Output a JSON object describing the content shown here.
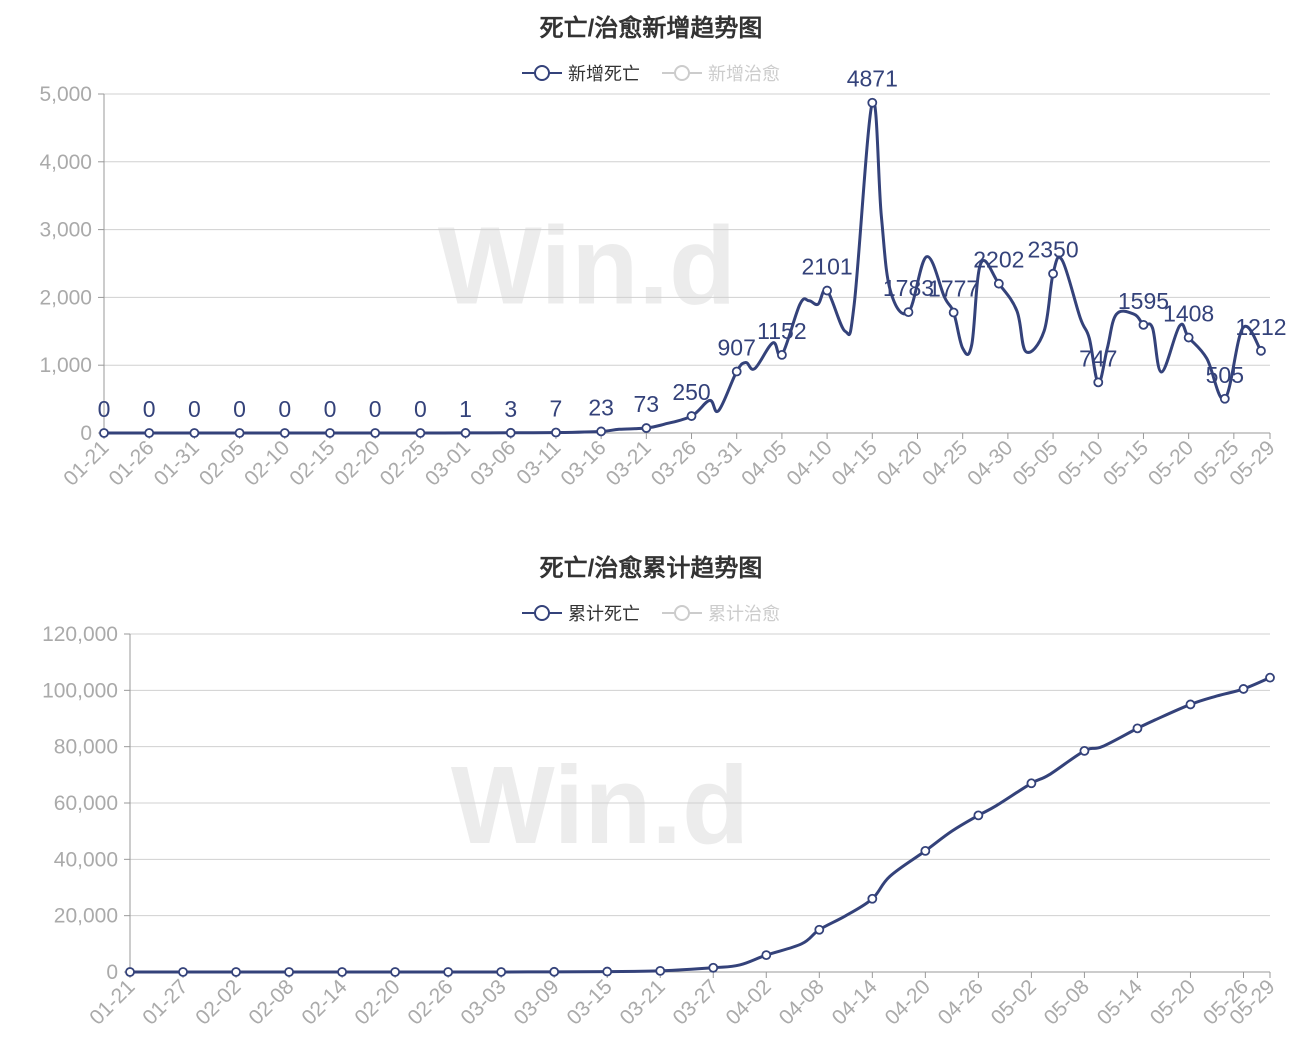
{
  "charts": [
    {
      "title": "死亡/治愈新增趋势图",
      "legend": [
        {
          "label": "新增死亡",
          "active": true
        },
        {
          "label": "新增治愈",
          "active": false
        }
      ],
      "watermark": "Win.d"
    },
    {
      "title": "死亡/治愈累计趋势图",
      "legend": [
        {
          "label": "累计死亡",
          "active": true
        },
        {
          "label": "累计治愈",
          "active": false
        }
      ],
      "watermark": "Win.d"
    }
  ],
  "colors": {
    "series": "#34427a",
    "inactive": "#cccccc",
    "axis_text": "#aaaaaa",
    "grid": "#d0d0d0",
    "watermark": "#ececec"
  },
  "chart_data": [
    {
      "type": "line",
      "title": "死亡/治愈新增趋势图",
      "xlabel": "",
      "ylabel": "",
      "ylim": [
        0,
        5000
      ],
      "yticks": [
        "0",
        "1,000",
        "2,000",
        "3,000",
        "4,000",
        "5,000"
      ],
      "yticks_values": [
        0,
        1000,
        2000,
        3000,
        4000,
        5000
      ],
      "grid": true,
      "legend_position": "top-center",
      "x_tick_labels": [
        "01-21",
        "01-26",
        "01-31",
        "02-05",
        "02-10",
        "02-15",
        "02-20",
        "02-25",
        "03-01",
        "03-06",
        "03-11",
        "03-16",
        "03-21",
        "03-26",
        "03-31",
        "04-05",
        "04-10",
        "04-15",
        "04-20",
        "04-25",
        "04-30",
        "05-05",
        "05-10",
        "05-15",
        "05-20",
        "05-25",
        "05-29"
      ],
      "x_index_range": [
        0,
        129
      ],
      "series": [
        {
          "name": "新增死亡",
          "points": [
            [
              0,
              0
            ],
            [
              5,
              0
            ],
            [
              10,
              0
            ],
            [
              15,
              0
            ],
            [
              20,
              0
            ],
            [
              25,
              0
            ],
            [
              30,
              0
            ],
            [
              35,
              0
            ],
            [
              40,
              1
            ],
            [
              45,
              3
            ],
            [
              50,
              7
            ],
            [
              55,
              23
            ],
            [
              57,
              55
            ],
            [
              60,
              73
            ],
            [
              62,
              130
            ],
            [
              65,
              250
            ],
            [
              67,
              480
            ],
            [
              68,
              330
            ],
            [
              70,
              907
            ],
            [
              71,
              1040
            ],
            [
              72,
              950
            ],
            [
              74,
              1330
            ],
            [
              75,
              1152
            ],
            [
              77,
              1900
            ],
            [
              78,
              1950
            ],
            [
              79,
              1900
            ],
            [
              80,
              2101
            ],
            [
              82,
              1500
            ],
            [
              83,
              1900
            ],
            [
              85,
              4871
            ],
            [
              86,
              3200
            ],
            [
              87,
              2100
            ],
            [
              89,
              1783
            ],
            [
              91,
              2600
            ],
            [
              93,
              2000
            ],
            [
              94,
              1777
            ],
            [
              95,
              1250
            ],
            [
              96,
              1300
            ],
            [
              97,
              2500
            ],
            [
              99,
              2202
            ],
            [
              101,
              1800
            ],
            [
              102,
              1200
            ],
            [
              104,
              1500
            ],
            [
              105,
              2350
            ],
            [
              106,
              2550
            ],
            [
              108,
              1700
            ],
            [
              109,
              1400
            ],
            [
              110,
              747
            ],
            [
              111,
              1250
            ],
            [
              112,
              1750
            ],
            [
              114,
              1750
            ],
            [
              115,
              1595
            ],
            [
              116,
              1550
            ],
            [
              117,
              900
            ],
            [
              119,
              1580
            ],
            [
              120,
              1408
            ],
            [
              122,
              1100
            ],
            [
              124,
              505
            ],
            [
              126,
              1550
            ],
            [
              128,
              1212
            ]
          ],
          "marked": [
            {
              "x": 0,
              "y": 0,
              "label": "0"
            },
            {
              "x": 5,
              "y": 0,
              "label": "0"
            },
            {
              "x": 10,
              "y": 0,
              "label": "0"
            },
            {
              "x": 15,
              "y": 0,
              "label": "0"
            },
            {
              "x": 20,
              "y": 0,
              "label": "0"
            },
            {
              "x": 25,
              "y": 0,
              "label": "0"
            },
            {
              "x": 30,
              "y": 0,
              "label": "0"
            },
            {
              "x": 35,
              "y": 0,
              "label": "0"
            },
            {
              "x": 40,
              "y": 1,
              "label": "1"
            },
            {
              "x": 45,
              "y": 3,
              "label": "3"
            },
            {
              "x": 50,
              "y": 7,
              "label": "7"
            },
            {
              "x": 55,
              "y": 23,
              "label": "23"
            },
            {
              "x": 60,
              "y": 73,
              "label": "73"
            },
            {
              "x": 65,
              "y": 250,
              "label": "250"
            },
            {
              "x": 70,
              "y": 907,
              "label": "907"
            },
            {
              "x": 75,
              "y": 1152,
              "label": "1152"
            },
            {
              "x": 80,
              "y": 2101,
              "label": "2101"
            },
            {
              "x": 85,
              "y": 4871,
              "label": "4871"
            },
            {
              "x": 89,
              "y": 1783,
              "label": "1783"
            },
            {
              "x": 94,
              "y": 1777,
              "label": "1777"
            },
            {
              "x": 99,
              "y": 2202,
              "label": "2202"
            },
            {
              "x": 105,
              "y": 2350,
              "label": "2350"
            },
            {
              "x": 110,
              "y": 747,
              "label": "747"
            },
            {
              "x": 115,
              "y": 1595,
              "label": "1595"
            },
            {
              "x": 120,
              "y": 1408,
              "label": "1408"
            },
            {
              "x": 124,
              "y": 505,
              "label": "505"
            },
            {
              "x": 128,
              "y": 1212,
              "label": "1212"
            }
          ]
        }
      ]
    },
    {
      "type": "line",
      "title": "死亡/治愈累计趋势图",
      "xlabel": "",
      "ylabel": "",
      "ylim": [
        0,
        120000
      ],
      "yticks": [
        "0",
        "20,000",
        "40,000",
        "60,000",
        "80,000",
        "100,000",
        "120,000"
      ],
      "yticks_values": [
        0,
        20000,
        40000,
        60000,
        80000,
        100000,
        120000
      ],
      "grid": true,
      "legend_position": "top-center",
      "x_tick_labels": [
        "01-21",
        "01-27",
        "02-02",
        "02-08",
        "02-14",
        "02-20",
        "02-26",
        "03-03",
        "03-09",
        "03-15",
        "03-21",
        "03-27",
        "04-02",
        "04-08",
        "04-14",
        "04-20",
        "04-26",
        "05-02",
        "05-08",
        "05-14",
        "05-20",
        "05-26",
        "05-29"
      ],
      "x_index_range": [
        0,
        129
      ],
      "series": [
        {
          "name": "累计死亡",
          "points": [
            [
              0,
              0
            ],
            [
              6,
              0
            ],
            [
              12,
              0
            ],
            [
              18,
              0
            ],
            [
              24,
              0
            ],
            [
              30,
              0
            ],
            [
              36,
              0
            ],
            [
              42,
              10
            ],
            [
              48,
              60
            ],
            [
              54,
              150
            ],
            [
              60,
              400
            ],
            [
              66,
              1500
            ],
            [
              69,
              2500
            ],
            [
              72,
              6000
            ],
            [
              76,
              10000
            ],
            [
              78,
              15000
            ],
            [
              81,
              20000
            ],
            [
              84,
              26000
            ],
            [
              86,
              34000
            ],
            [
              90,
              43000
            ],
            [
              93,
              50000
            ],
            [
              96,
              55600
            ],
            [
              98,
              59000
            ],
            [
              102,
              67000
            ],
            [
              104,
              70000
            ],
            [
              108,
              78500
            ],
            [
              110,
              80000
            ],
            [
              114,
              86500
            ],
            [
              116,
              89500
            ],
            [
              120,
              95000
            ],
            [
              123,
              98000
            ],
            [
              126,
              100500
            ],
            [
              129,
              104500
            ]
          ],
          "marked_x": [
            0,
            6,
            12,
            18,
            24,
            30,
            36,
            42,
            48,
            54,
            60,
            66,
            72,
            78,
            84,
            90,
            96,
            102,
            108,
            114,
            120,
            126,
            129
          ]
        }
      ]
    }
  ]
}
